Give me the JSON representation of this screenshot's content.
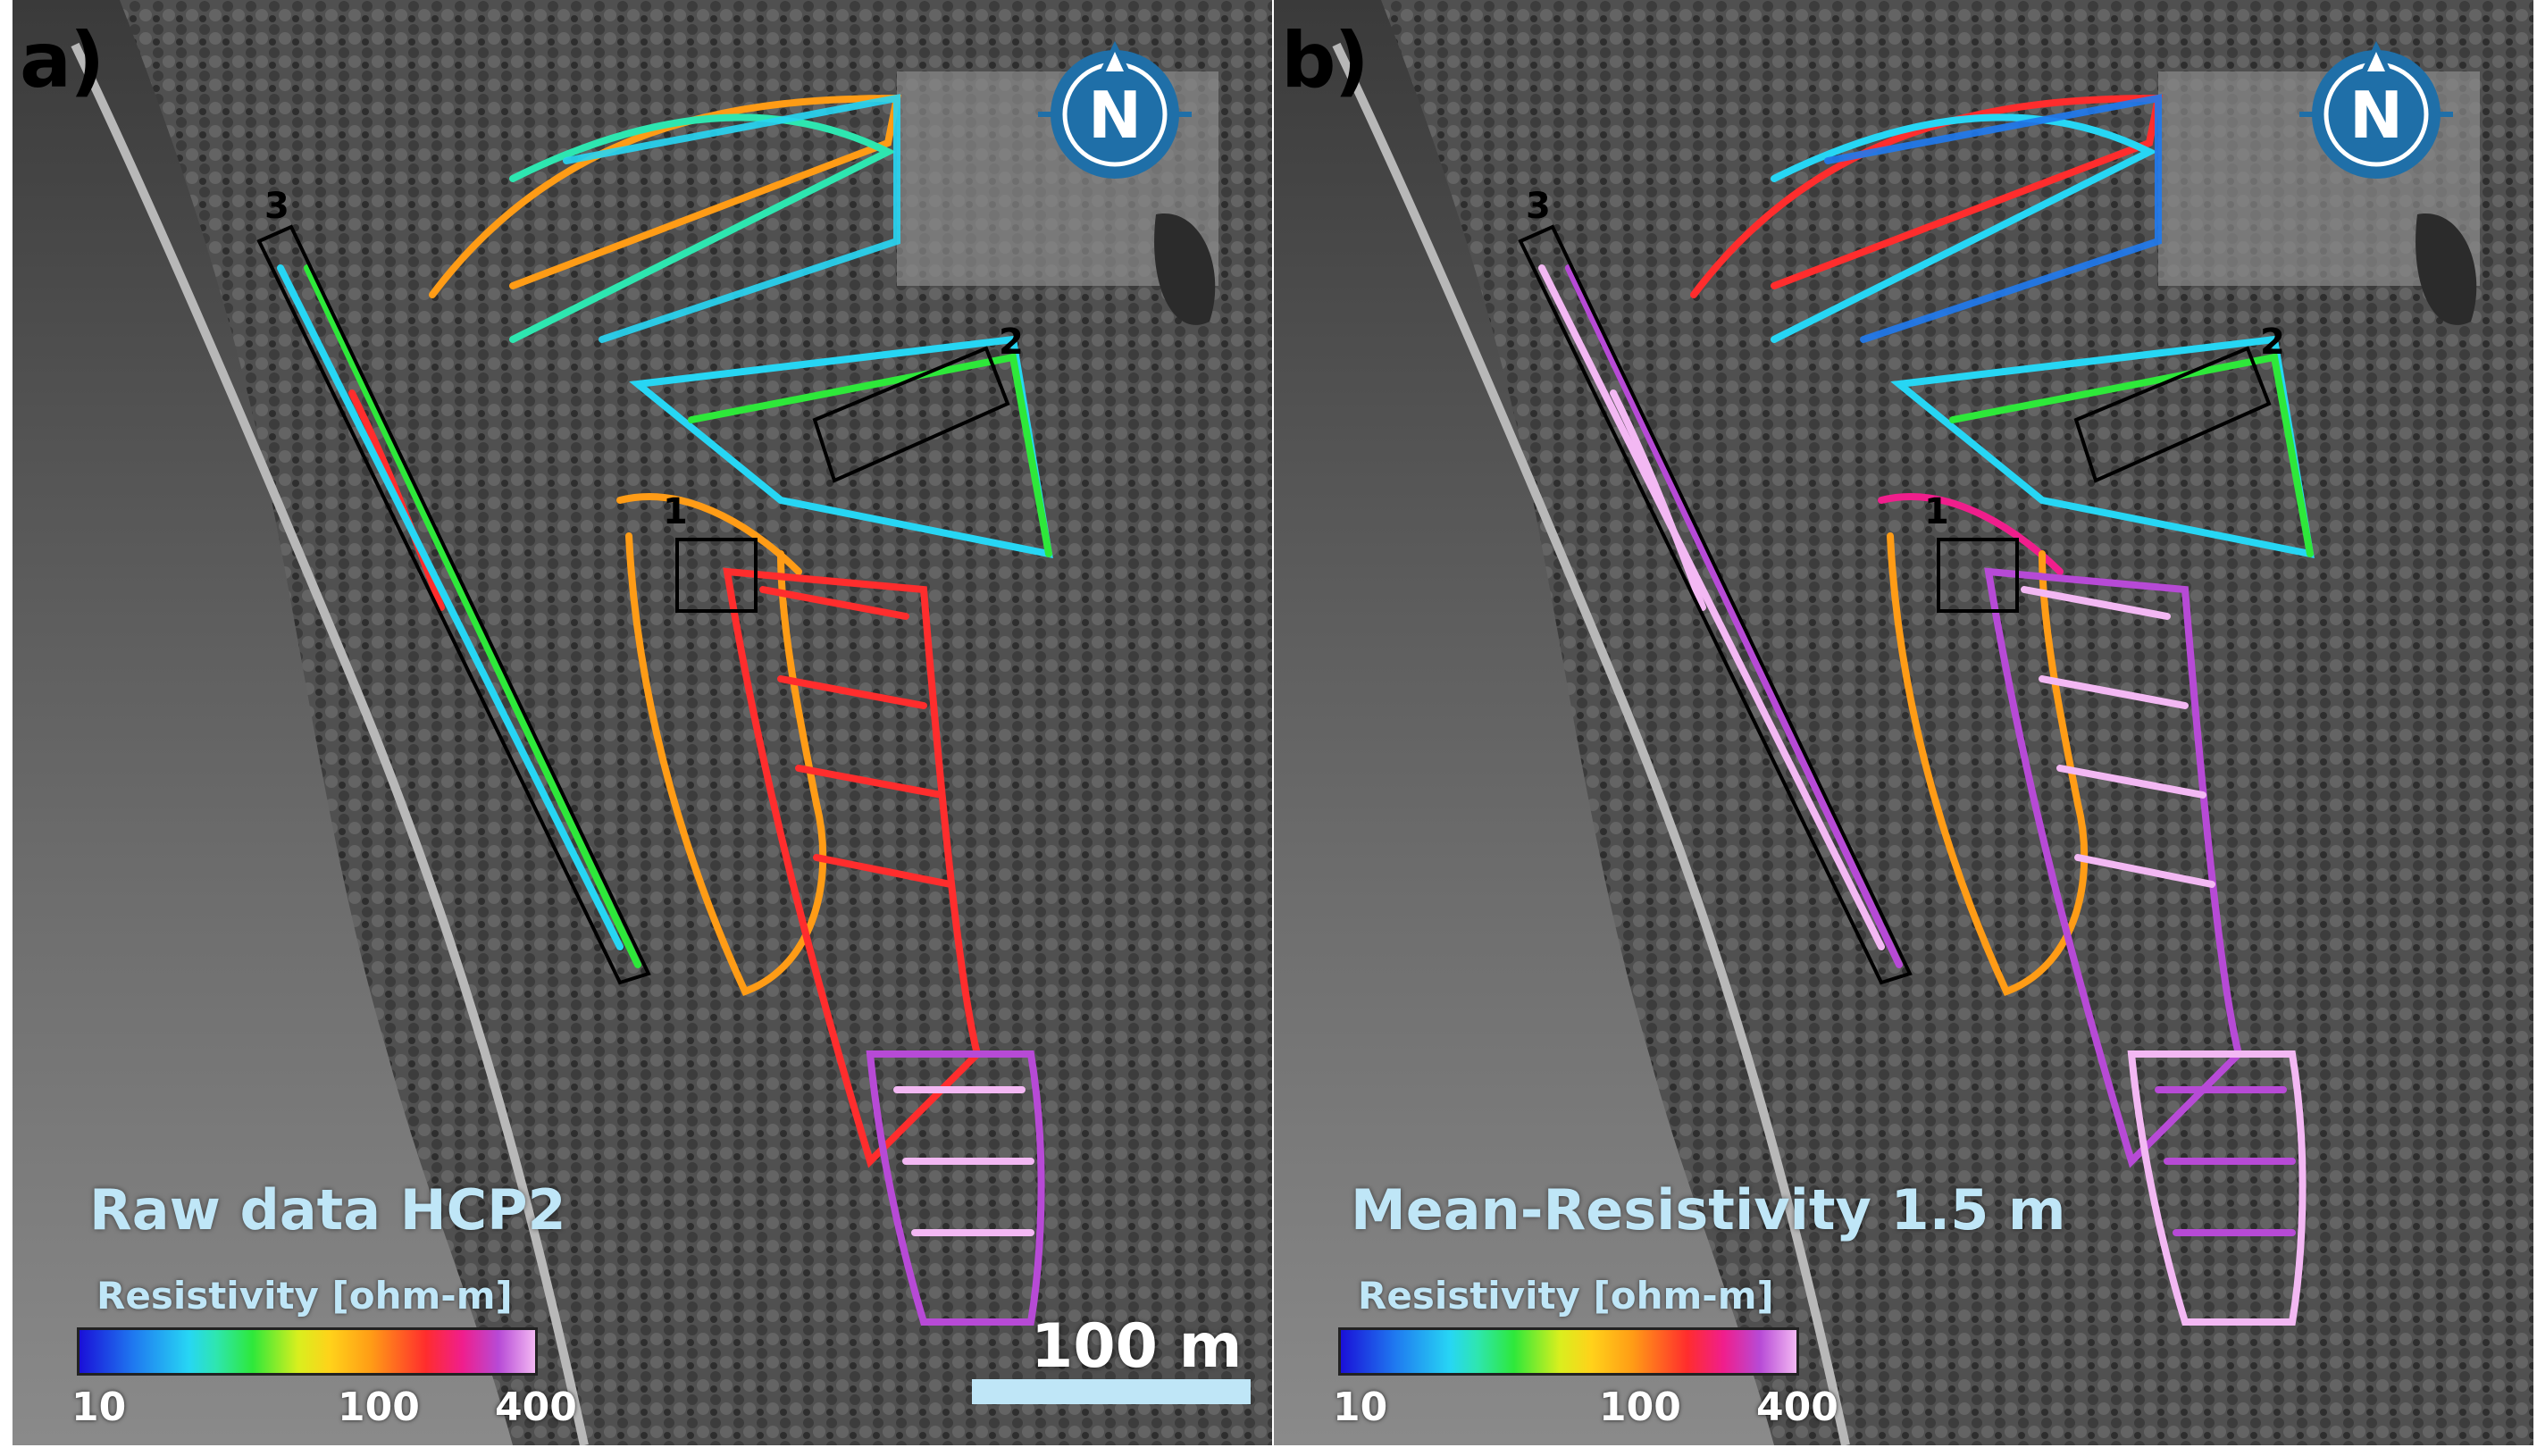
{
  "figure": {
    "panels": [
      {
        "letter": "a)",
        "title": "Raw data HCP2"
      },
      {
        "letter": "b)",
        "title": "Mean-Resistivity 1.5 m"
      }
    ],
    "colorbar": {
      "title": "Resistivity [ohm-m]",
      "scale": "log",
      "ticks": [
        "10",
        "100",
        "400"
      ],
      "colors": [
        "#1a10d8",
        "#27d6f4",
        "#2ee83a",
        "#ffd21a",
        "#ff9c16",
        "#ff2d2d",
        "#f01e8c",
        "#b74ad6",
        "#f3b8f3"
      ]
    },
    "sites": [
      "1",
      "2",
      "3"
    ],
    "north_arrow": {
      "letter": "N",
      "icon": "north-arrow-compass-icon"
    },
    "scale_bar": {
      "label": "100 m"
    },
    "colors": {
      "label_blue": "#bfe6f7",
      "compass_blue": "#1f6fa8",
      "box_outline": "#000000"
    }
  }
}
